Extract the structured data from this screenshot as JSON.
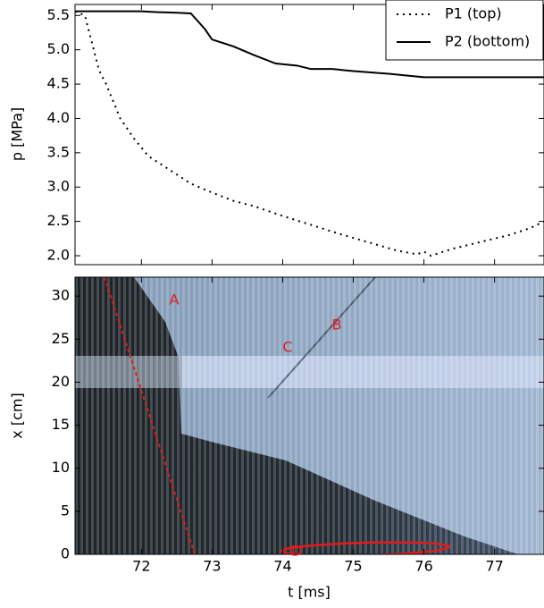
{
  "chart_data": [
    {
      "type": "line",
      "ylabel": "p [MPa]",
      "xlim": [
        71.06,
        77.7
      ],
      "ylim": [
        1.87,
        5.66
      ],
      "xticks": [
        72,
        73,
        74,
        75,
        76,
        77
      ],
      "yticks": [
        {
          "value": 2,
          "label": "2.0"
        },
        2.5,
        {
          "value": 3,
          "label": "3.0"
        },
        3.5,
        {
          "value": 4,
          "label": "4.0"
        },
        4.5,
        {
          "value": 5,
          "label": "5.0"
        },
        5.5
      ],
      "legend": "upper right",
      "series": [
        {
          "name": "P1 (top)",
          "style": "dotted",
          "color": "#000000",
          "x": [
            71.06,
            71.2,
            71.3,
            71.4,
            71.5,
            71.7,
            71.9,
            72.1,
            72.4,
            72.7,
            73.0,
            73.3,
            73.6,
            74.0,
            74.4,
            74.8,
            75.2,
            75.6,
            75.9,
            76.0,
            76.1,
            76.4,
            76.8,
            77.2,
            77.5,
            77.7
          ],
          "values": [
            5.56,
            5.5,
            5.1,
            4.7,
            4.5,
            4.0,
            3.7,
            3.45,
            3.25,
            3.05,
            2.92,
            2.8,
            2.72,
            2.58,
            2.45,
            2.32,
            2.2,
            2.08,
            2.02,
            2.06,
            2.0,
            2.1,
            2.2,
            2.3,
            2.4,
            2.5
          ]
        },
        {
          "name": "P2 (bottom)",
          "style": "solid",
          "color": "#000000",
          "x": [
            71.06,
            72.0,
            72.2,
            72.5,
            72.7,
            72.9,
            73.0,
            73.3,
            73.6,
            73.9,
            74.2,
            74.4,
            74.7,
            75.0,
            75.5,
            76.0,
            76.5,
            77.0,
            77.7
          ],
          "values": [
            5.56,
            5.56,
            5.55,
            5.54,
            5.53,
            5.3,
            5.15,
            5.05,
            4.92,
            4.8,
            4.77,
            4.72,
            4.72,
            4.69,
            4.65,
            4.6,
            4.6,
            4.6,
            4.6
          ]
        }
      ]
    },
    {
      "type": "image",
      "xlabel": "t [ms]",
      "ylabel": "x [cm]",
      "xlim": [
        71.06,
        77.7
      ],
      "ylim": [
        0,
        32.2
      ],
      "xticks": [
        72,
        73,
        74,
        75,
        76,
        77
      ],
      "yticks": [
        0,
        5,
        10,
        15,
        20,
        25,
        30
      ],
      "annotations": [
        "A",
        "B",
        "C",
        "D"
      ],
      "annotation_color": "#e41a1c"
    }
  ]
}
